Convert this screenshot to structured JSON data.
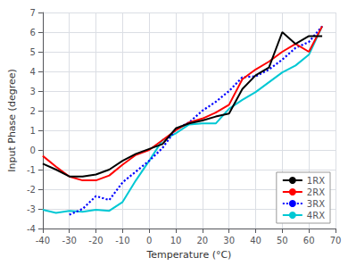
{
  "chart_data": {
    "type": "line",
    "title": "",
    "xlabel": "Temperature (°C)",
    "ylabel": "Input Phase (degree)",
    "x": [
      -40,
      -35,
      -30,
      -25,
      -20,
      -15,
      -10,
      -5,
      0,
      5,
      10,
      15,
      20,
      25,
      30,
      35,
      40,
      45,
      50,
      55,
      60,
      65
    ],
    "series": [
      {
        "name": "4RX",
        "color": "#00c8d4",
        "line_style": "solid",
        "values": [
          -3.05,
          -3.2,
          -3.1,
          -3.15,
          -3.05,
          -3.1,
          -2.65,
          -1.55,
          -0.55,
          0.5,
          0.85,
          1.3,
          1.35,
          1.35,
          2.1,
          2.55,
          2.95,
          3.45,
          3.95,
          4.3,
          4.85,
          6.3
        ]
      },
      {
        "name": "3RX",
        "color": "#0000ff",
        "line_style": "dotted",
        "values": [
          null,
          null,
          -3.3,
          -3.0,
          -2.35,
          -2.55,
          -1.65,
          -1.1,
          -0.55,
          0.1,
          1.05,
          1.4,
          2.0,
          2.45,
          3.0,
          3.7,
          3.75,
          4.1,
          4.6,
          5.2,
          5.5,
          6.3
        ]
      },
      {
        "name": "2RX",
        "color": "#ff0000",
        "line_style": "solid",
        "values": [
          -0.3,
          -0.85,
          -1.35,
          -1.55,
          -1.55,
          -1.3,
          -0.75,
          -0.25,
          0.0,
          0.5,
          1.0,
          1.4,
          1.6,
          1.9,
          2.3,
          3.6,
          4.1,
          4.5,
          5.0,
          5.4,
          5.0,
          6.3
        ]
      },
      {
        "name": "1RX",
        "color": "#000000",
        "line_style": "solid",
        "values": [
          -0.7,
          -1.0,
          -1.35,
          -1.35,
          -1.25,
          -1.0,
          -0.55,
          -0.2,
          0.05,
          0.3,
          1.1,
          1.35,
          1.5,
          1.7,
          1.85,
          3.1,
          3.8,
          4.2,
          6.0,
          5.4,
          5.8,
          5.8
        ]
      }
    ],
    "xlim": [
      -40,
      70
    ],
    "xticks": [
      -40,
      -30,
      -20,
      -10,
      0,
      10,
      20,
      30,
      40,
      50,
      60,
      70
    ],
    "ylim": [
      -4,
      7
    ],
    "yticks": [
      -4,
      -3,
      -2,
      -1,
      0,
      1,
      2,
      3,
      4,
      5,
      6,
      7
    ],
    "grid": true,
    "legend": "lower right"
  }
}
